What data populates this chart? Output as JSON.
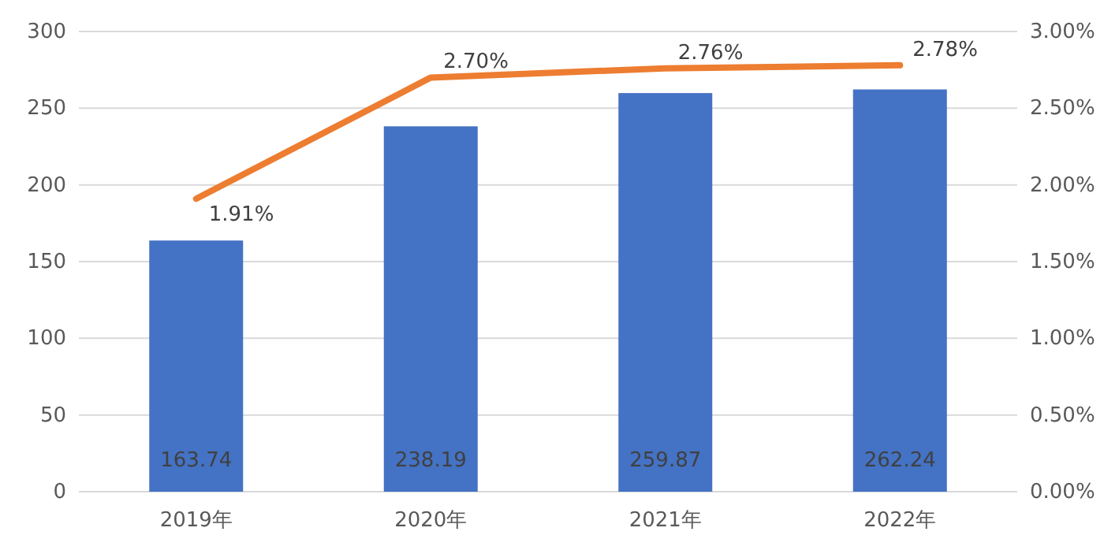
{
  "chart_data": {
    "type": "bar",
    "categories": [
      "2019年",
      "2020年",
      "2021年",
      "2022年"
    ],
    "series": [
      {
        "color": "#4472c4",
        "values": [
          163.74,
          238.19,
          259.87,
          262.24
        ],
        "value_labels": [
          "163.74",
          "238.19",
          "259.87",
          "262.24"
        ]
      },
      {
        "type": "line",
        "axis": "y2",
        "color": "#ed7d31",
        "values": [
          1.91,
          2.7,
          2.76,
          2.78
        ],
        "value_labels": [
          "1.91%",
          "2.70%",
          "2.76%",
          "2.78%"
        ]
      }
    ],
    "ylim": [
      0,
      300
    ],
    "yticks": [
      0,
      50,
      100,
      150,
      200,
      250,
      300
    ],
    "y2lim": [
      0,
      3
    ],
    "y2ticks": [
      {
        "value": 0,
        "label": "0.00%"
      },
      {
        "value": 0.5,
        "label": "0.50%"
      },
      {
        "value": 1,
        "label": "1.00%"
      },
      {
        "value": 1.5,
        "label": "1.50%"
      },
      {
        "value": 2,
        "label": "2.00%"
      },
      {
        "value": 2.5,
        "label": "2.50%"
      },
      {
        "value": 3,
        "label": "3.00%"
      }
    ],
    "grid": "y",
    "marker": "none",
    "line_style": "solid"
  }
}
